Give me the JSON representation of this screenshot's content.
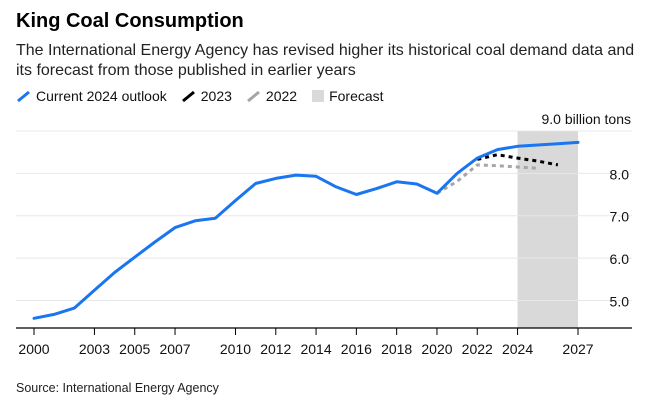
{
  "header": {
    "title": "King Coal Consumption",
    "subtitle": "The International Energy Agency has revised higher its historical coal demand data and its forecast from those published in earlier years"
  },
  "legend": [
    {
      "label": "Current 2024 outlook",
      "color": "#1a75f0",
      "style": "solid"
    },
    {
      "label": "2023",
      "color": "#000000",
      "style": "dashed"
    },
    {
      "label": "2022",
      "color": "#a6a6a6",
      "style": "dashed"
    },
    {
      "label": "Forecast",
      "color": "#d9d9d9",
      "style": "box"
    }
  ],
  "footer": {
    "source": "Source: International Energy Agency"
  },
  "chart_data": {
    "type": "line",
    "title": "King Coal Consumption",
    "unit_label": "9.0 billion tons",
    "xlim": [
      2000,
      2027
    ],
    "ylim": [
      4.35,
      9.0
    ],
    "x_ticks": [
      2000,
      2003,
      2005,
      2007,
      2010,
      2012,
      2014,
      2016,
      2018,
      2020,
      2022,
      2024,
      2027
    ],
    "y_ticks": [
      {
        "value": 5.0,
        "label": "5.0"
      },
      {
        "value": 6.0,
        "label": "6.0"
      },
      {
        "value": 7.0,
        "label": "7.0"
      },
      {
        "value": 8.0,
        "label": "8.0"
      },
      {
        "value": 9.0,
        "label": "9.0 billion tons"
      }
    ],
    "forecast_range": [
      2024,
      2027
    ],
    "series": [
      {
        "name": "Current 2024 outlook",
        "color": "#1a75f0",
        "style": "solid",
        "x": [
          2000,
          2001,
          2002,
          2003,
          2004,
          2005,
          2006,
          2007,
          2008,
          2009,
          2010,
          2011,
          2012,
          2013,
          2014,
          2015,
          2016,
          2017,
          2018,
          2019,
          2020,
          2021,
          2022,
          2023,
          2024,
          2025,
          2026,
          2027
        ],
        "values": [
          4.58,
          4.67,
          4.82,
          5.24,
          5.66,
          6.02,
          6.38,
          6.72,
          6.88,
          6.94,
          7.36,
          7.76,
          7.88,
          7.96,
          7.93,
          7.68,
          7.5,
          7.64,
          7.8,
          7.75,
          7.53,
          8.0,
          8.36,
          8.56,
          8.64,
          8.67,
          8.7,
          8.73
        ]
      },
      {
        "name": "2023",
        "color": "#000000",
        "style": "dashed",
        "x": [
          2022,
          2023,
          2024,
          2025,
          2026
        ],
        "values": [
          8.33,
          8.44,
          8.36,
          8.29,
          8.2
        ]
      },
      {
        "name": "2022",
        "color": "#a6a6a6",
        "style": "dashed",
        "x": [
          2020,
          2021,
          2022,
          2023,
          2024,
          2025
        ],
        "values": [
          7.53,
          7.81,
          8.2,
          8.18,
          8.15,
          8.12
        ]
      }
    ]
  }
}
